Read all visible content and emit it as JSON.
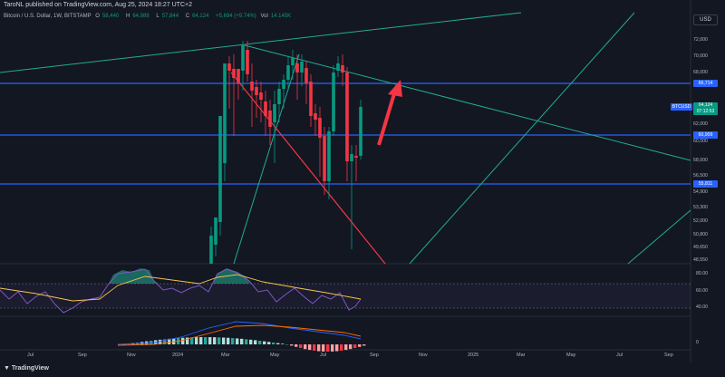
{
  "header": {
    "publisher": "TaroNL published on TradingView.com, Aug 25, 2024 18:27 UTC+2"
  },
  "symbol": {
    "title": "Bitcoin / U.S. Dollar, 1W, BITSTAMP",
    "open_label": "O",
    "open": "58,440",
    "high_label": "H",
    "high": "64,988",
    "low_label": "L",
    "low": "57,844",
    "close_label": "C",
    "close": "64,124",
    "change": "+5,694 (+9.74%)",
    "vol_label": "Vol",
    "vol": "14.145K"
  },
  "currency": "USD",
  "price_axis": [
    "72,000",
    "70,000",
    "68,000",
    "62,000",
    "60,000",
    "58,000",
    "56,500",
    "54,900",
    "53,300",
    "52,000",
    "50,800",
    "49,650",
    "48,550"
  ],
  "levels": {
    "upper": "66,714",
    "middle": "60,909",
    "lower": "55,811",
    "colors": {
      "level": "#2962ff",
      "price": "#089981"
    }
  },
  "last_price": {
    "symbol": "BTCUSD",
    "price": "64,124",
    "countdown": "07:12:53"
  },
  "rsi_axis": [
    "80.00",
    "60.00",
    "40.00"
  ],
  "macd_axis": [
    "0"
  ],
  "time_axis": [
    "Jul",
    "Sep",
    "Nov",
    "2024",
    "Mar",
    "May",
    "Jul",
    "Sep",
    "Nov",
    "2025",
    "Mar",
    "May",
    "Jul",
    "Sep"
  ],
  "footer": {
    "brand": "TradingView"
  },
  "colors": {
    "up": "#089981",
    "down": "#f23645",
    "trendline": "#22ab94",
    "support": "#f23645",
    "arrow": "#f23645"
  }
}
